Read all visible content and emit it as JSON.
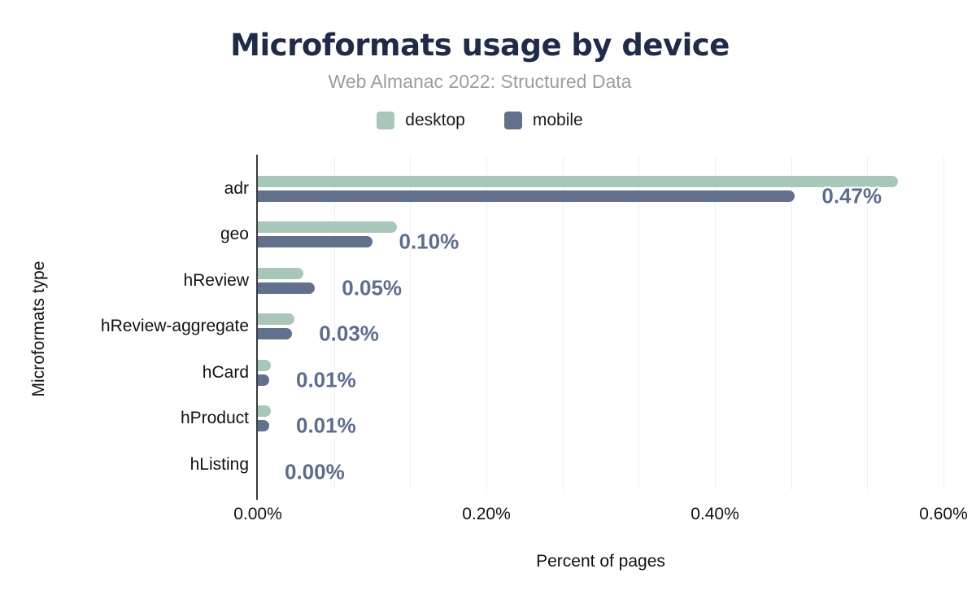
{
  "chart": {
    "title": "Microformats usage by device",
    "subtitle": "Web Almanac 2022: Structured Data",
    "xlabel": "Percent of pages",
    "ylabel": "Microformats type"
  },
  "chart_data": {
    "type": "bar",
    "orientation": "horizontal",
    "title": "Microformats usage by device",
    "subtitle": "Web Almanac 2022: Structured Data",
    "xlabel": "Percent of pages",
    "ylabel": "Microformats type",
    "categories": [
      "adr",
      "geo",
      "hReview",
      "hReview-aggregate",
      "hCard",
      "hProduct",
      "hListing"
    ],
    "series": [
      {
        "name": "desktop",
        "color": "#a7c8b8",
        "values": [
          0.56,
          0.122,
          0.04,
          0.032,
          0.011,
          0.011,
          0.0
        ]
      },
      {
        "name": "mobile",
        "color": "#61708d",
        "values": [
          0.47,
          0.1,
          0.05,
          0.03,
          0.01,
          0.01,
          0.0
        ]
      }
    ],
    "value_labels": [
      "0.47%",
      "0.10%",
      "0.05%",
      "0.03%",
      "0.01%",
      "0.01%",
      "0.00%"
    ],
    "value_labels_series": "mobile",
    "x_ticks": [
      "0.00%",
      "0.20%",
      "0.40%",
      "0.60%"
    ],
    "x_tick_values": [
      0.0,
      0.2,
      0.4,
      0.6
    ],
    "xlim": [
      0.0,
      0.6
    ],
    "grid": "vertical, 2 minor lines per major tick (thirds of 0.20%)",
    "legend_position": "top-center"
  },
  "colors": {
    "title": "#1f2b49",
    "subtitle": "#9c9da2",
    "value_label": "#5b6e91",
    "axis_line": "#3a3a3a",
    "gridline": "#eceef2",
    "text": "#121212",
    "background": "#ffffff"
  }
}
